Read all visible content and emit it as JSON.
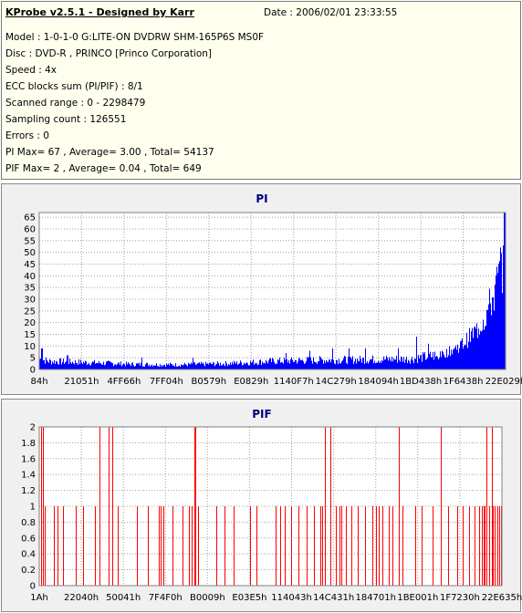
{
  "header": {
    "title": "KProbe v2.5.1 - Designed by Karr",
    "date": "Date : 2006/02/01 23:33:55",
    "lines": [
      "Model : 1-0-1-0 G:LITE-ON DVDRW SHM-165P6S MS0F",
      "Disc : DVD-R , PRINCO [Princo Corporation]",
      "Speed : 4x",
      "ECC blocks sum (PI/PIF) : 8/1",
      "Scanned range : 0 - 2298479",
      "Sampling count : 126551",
      "Errors : 0",
      "PI Max= 67 , Average= 3.00 , Total= 54137",
      "PIF Max= 2 , Average= 0.04 , Total= 649"
    ]
  },
  "colors": {
    "bar_pi": "#0000ff",
    "bar_pif": "#ff0000",
    "title": "#000080",
    "panel_bg": "#f0f0f0",
    "plot_bg": "#ffffff",
    "grid": "#a0a0a0"
  },
  "chart_data": [
    {
      "type": "bar",
      "title": "PI",
      "x_ticks": [
        "84h",
        "21051h",
        "4FF66h",
        "7FF04h",
        "B0579h",
        "E0829h",
        "1140F7h",
        "14C279h",
        "184094h",
        "1BD438h",
        "1F6438h",
        "22E029h"
      ],
      "ylim": [
        0,
        67
      ],
      "y_ticks": [
        0,
        5,
        10,
        15,
        20,
        25,
        30,
        35,
        40,
        45,
        50,
        55,
        60,
        65
      ],
      "grid": true,
      "baseline_profile": [
        [
          0.0,
          4.5
        ],
        [
          0.02,
          3.5
        ],
        [
          0.1,
          3.0
        ],
        [
          0.2,
          2.2
        ],
        [
          0.3,
          2.0
        ],
        [
          0.4,
          2.5
        ],
        [
          0.5,
          3.5
        ],
        [
          0.6,
          4.0
        ],
        [
          0.7,
          4.2
        ],
        [
          0.8,
          4.5
        ],
        [
          0.85,
          6.0
        ],
        [
          0.88,
          9.0
        ],
        [
          0.91,
          13.0
        ],
        [
          0.94,
          20.0
        ],
        [
          0.96,
          28.0
        ],
        [
          0.98,
          40.0
        ],
        [
          0.995,
          55.0
        ],
        [
          1.0,
          67.0
        ]
      ],
      "peaks": [
        [
          0.005,
          9
        ],
        [
          0.06,
          6
        ],
        [
          0.22,
          5
        ],
        [
          0.33,
          5
        ],
        [
          0.53,
          7
        ],
        [
          0.58,
          8
        ],
        [
          0.63,
          9
        ],
        [
          0.665,
          9
        ],
        [
          0.7,
          9
        ],
        [
          0.77,
          9
        ],
        [
          0.81,
          14
        ],
        [
          0.835,
          11
        ]
      ]
    },
    {
      "type": "bar",
      "title": "PIF",
      "x_ticks": [
        "1Ah",
        "22040h",
        "50041h",
        "7F4F0h",
        "B0009h",
        "E03E5h",
        "114043h",
        "14C431h",
        "184701h",
        "1BE001h",
        "1F7230h",
        "22E635h"
      ],
      "ylim": [
        0,
        2
      ],
      "y_ticks": [
        "0",
        "0.2",
        "0.4",
        "0.6",
        "0.8",
        "1",
        "1.2",
        "1.4",
        "1.6",
        "1.8",
        "2"
      ],
      "grid": true,
      "spikes_value2": [
        0.004,
        0.008,
        0.13,
        0.15,
        0.157,
        0.336,
        0.338,
        0.618,
        0.63,
        0.778,
        0.868,
        0.966,
        0.978
      ],
      "spikes_value1": [
        0.003,
        0.011,
        0.032,
        0.04,
        0.052,
        0.078,
        0.095,
        0.12,
        0.17,
        0.212,
        0.235,
        0.258,
        0.263,
        0.268,
        0.288,
        0.31,
        0.323,
        0.33,
        0.344,
        0.383,
        0.4,
        0.42,
        0.455,
        0.47,
        0.51,
        0.52,
        0.53,
        0.545,
        0.56,
        0.577,
        0.593,
        0.607,
        0.611,
        0.642,
        0.648,
        0.653,
        0.662,
        0.675,
        0.688,
        0.705,
        0.72,
        0.728,
        0.734,
        0.741,
        0.756,
        0.764,
        0.785,
        0.812,
        0.826,
        0.85,
        0.884,
        0.903,
        0.916,
        0.929,
        0.941,
        0.95,
        0.957,
        0.96,
        0.963,
        0.973,
        0.981,
        0.985,
        0.99,
        0.995,
        0.998
      ]
    }
  ]
}
